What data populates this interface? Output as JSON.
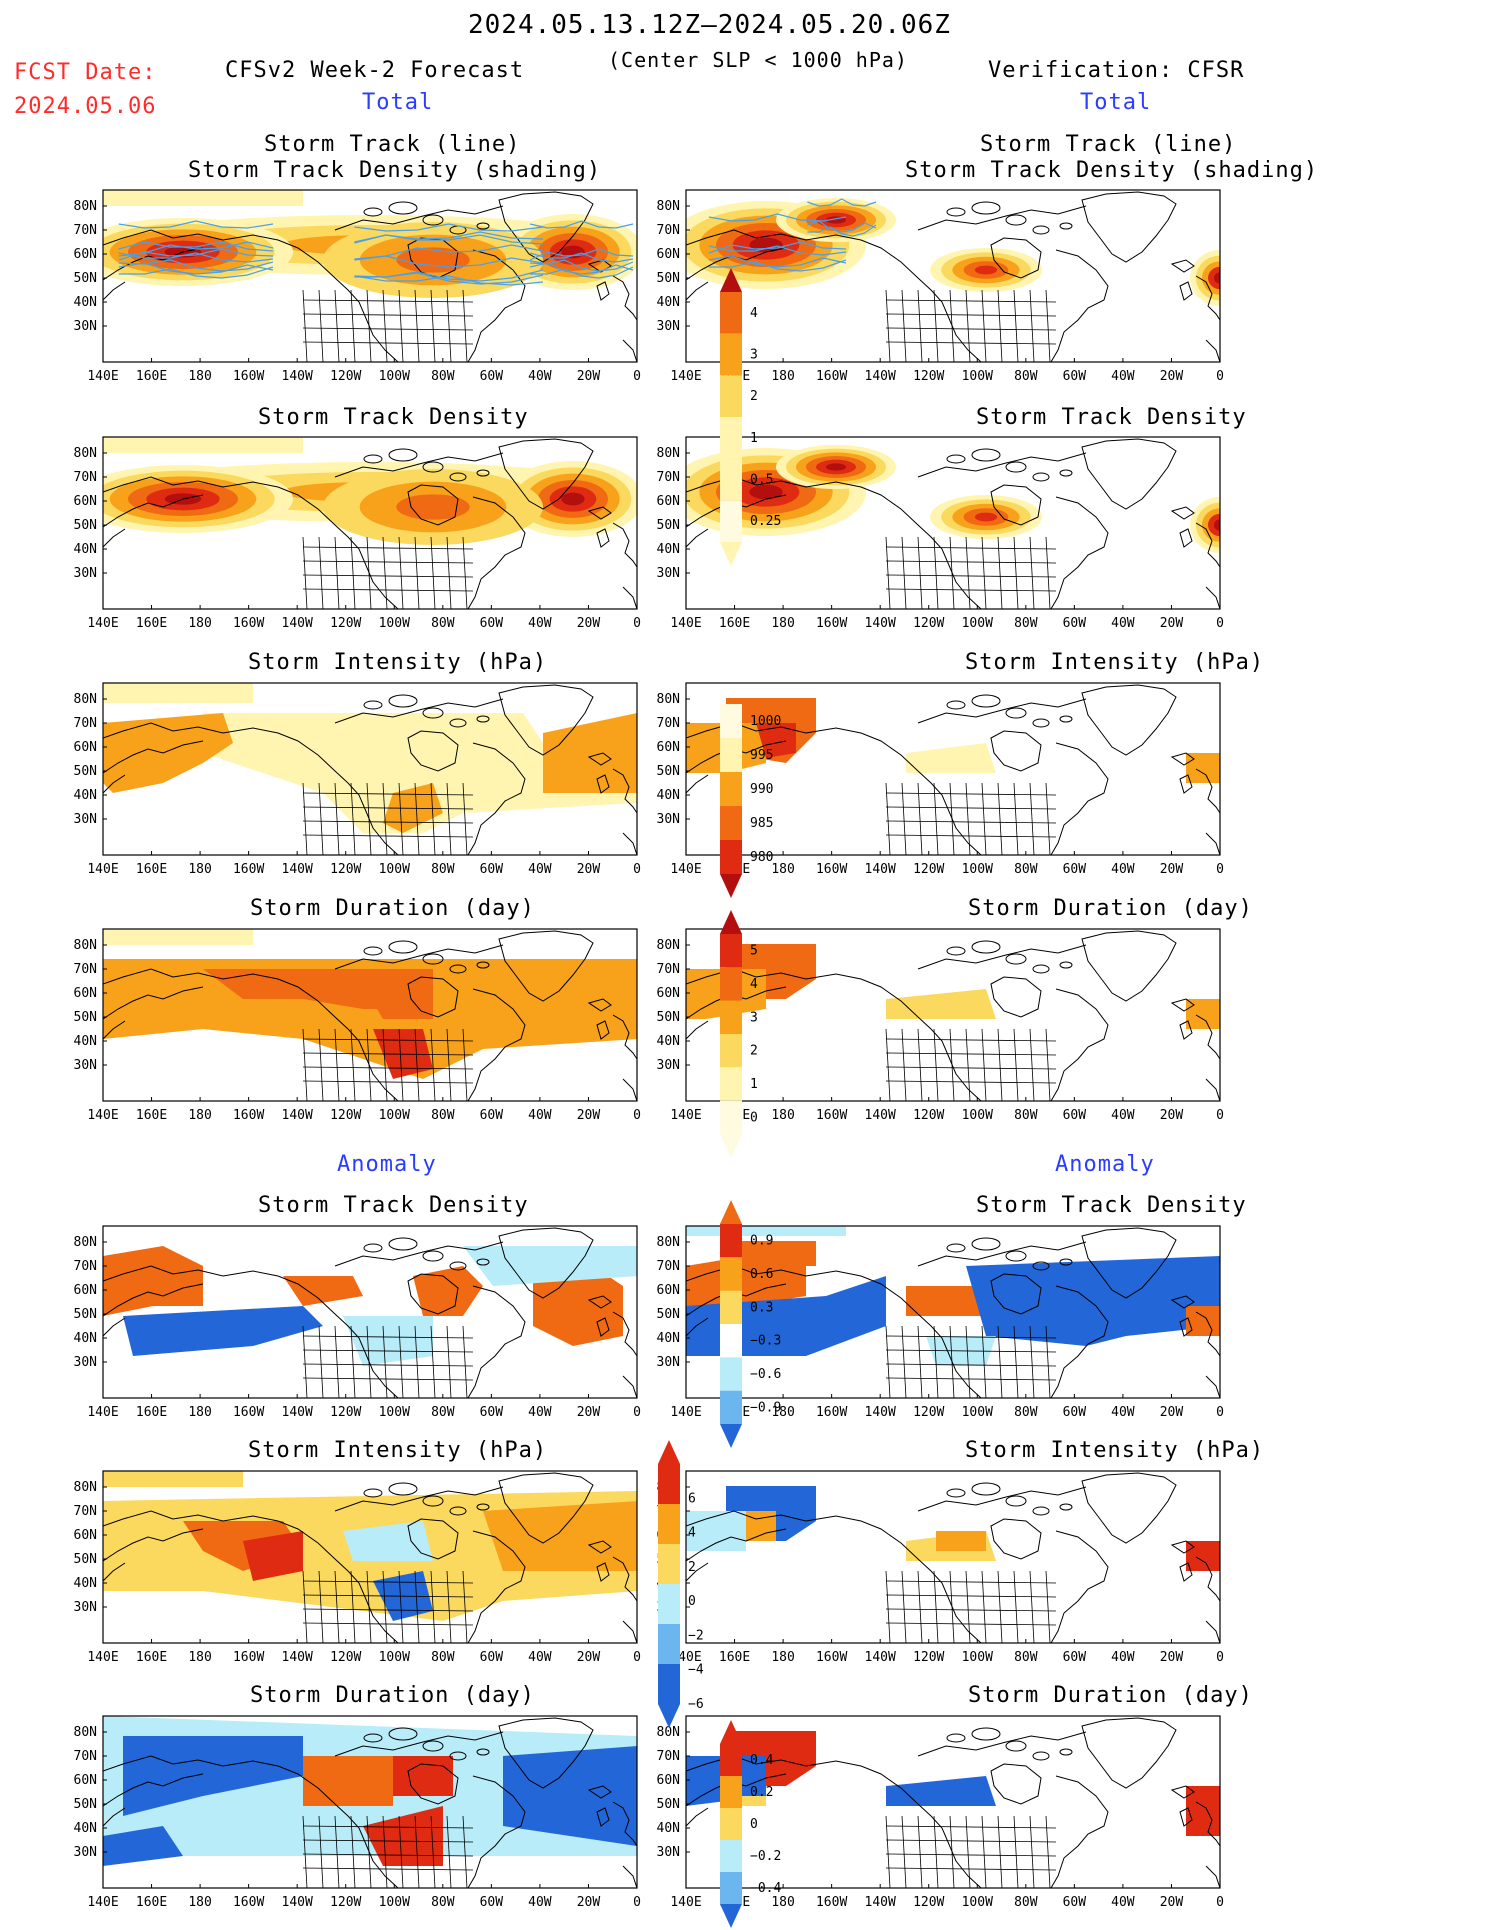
{
  "header": {
    "period": "2024.05.13.12Z–2024.05.20.06Z",
    "criterion": "(Center SLP < 1000 hPa)",
    "fcst_date_label": "FCST Date:",
    "fcst_date_value": "2024.05.06",
    "left_title": "CFSv2 Week-2 Forecast",
    "right_title": "Verification: CFSR"
  },
  "sections": {
    "total_left": "Total",
    "total_right": "Total",
    "anomaly_left": "Anomaly",
    "anomaly_right": "Anomaly"
  },
  "panel_titles": {
    "track_line": "Storm Track (line)",
    "track_density_shading": "Storm Track Density (shading)",
    "track_density": "Storm Track Density",
    "intensity": "Storm Intensity (hPa)",
    "duration": "Storm Duration (day)"
  },
  "axes": {
    "lat_labels": [
      "80N",
      "70N",
      "60N",
      "50N",
      "40N",
      "30N"
    ],
    "lon_labels": [
      "140E",
      "160E",
      "180",
      "160W",
      "140W",
      "120W",
      "100W",
      "80W",
      "60W",
      "40W",
      "20W",
      "0"
    ]
  },
  "colorbars": {
    "density": [
      "4",
      "3",
      "2",
      "1",
      "0.5",
      "0.25"
    ],
    "intensity": [
      "1000",
      "995",
      "990",
      "985",
      "980"
    ],
    "duration": [
      "5",
      "4",
      "3",
      "2",
      "1",
      "0"
    ],
    "density_anom": [
      "0.9",
      "0.6",
      "0.3",
      "−0.3",
      "−0.6",
      "−0.9"
    ],
    "intensity_anom": [
      "6",
      "4",
      "2",
      "0",
      "−2",
      "−4",
      "−6"
    ],
    "duration_anom": [
      "0.4",
      "0.2",
      "0",
      "−0.2",
      "−0.4"
    ]
  },
  "colors": {
    "light_yellow": "#fff5b0",
    "yellow": "#fbd95f",
    "orange": "#f8a21b",
    "dark_orange": "#ef6a12",
    "red": "#df2b12",
    "dark_red": "#b30f0f",
    "light_blue": "#b8ecf8",
    "mid_blue": "#6cb6f0",
    "blue": "#2266d8",
    "dark_blue": "#1440b0",
    "track_line": "#4aa0e8"
  }
}
